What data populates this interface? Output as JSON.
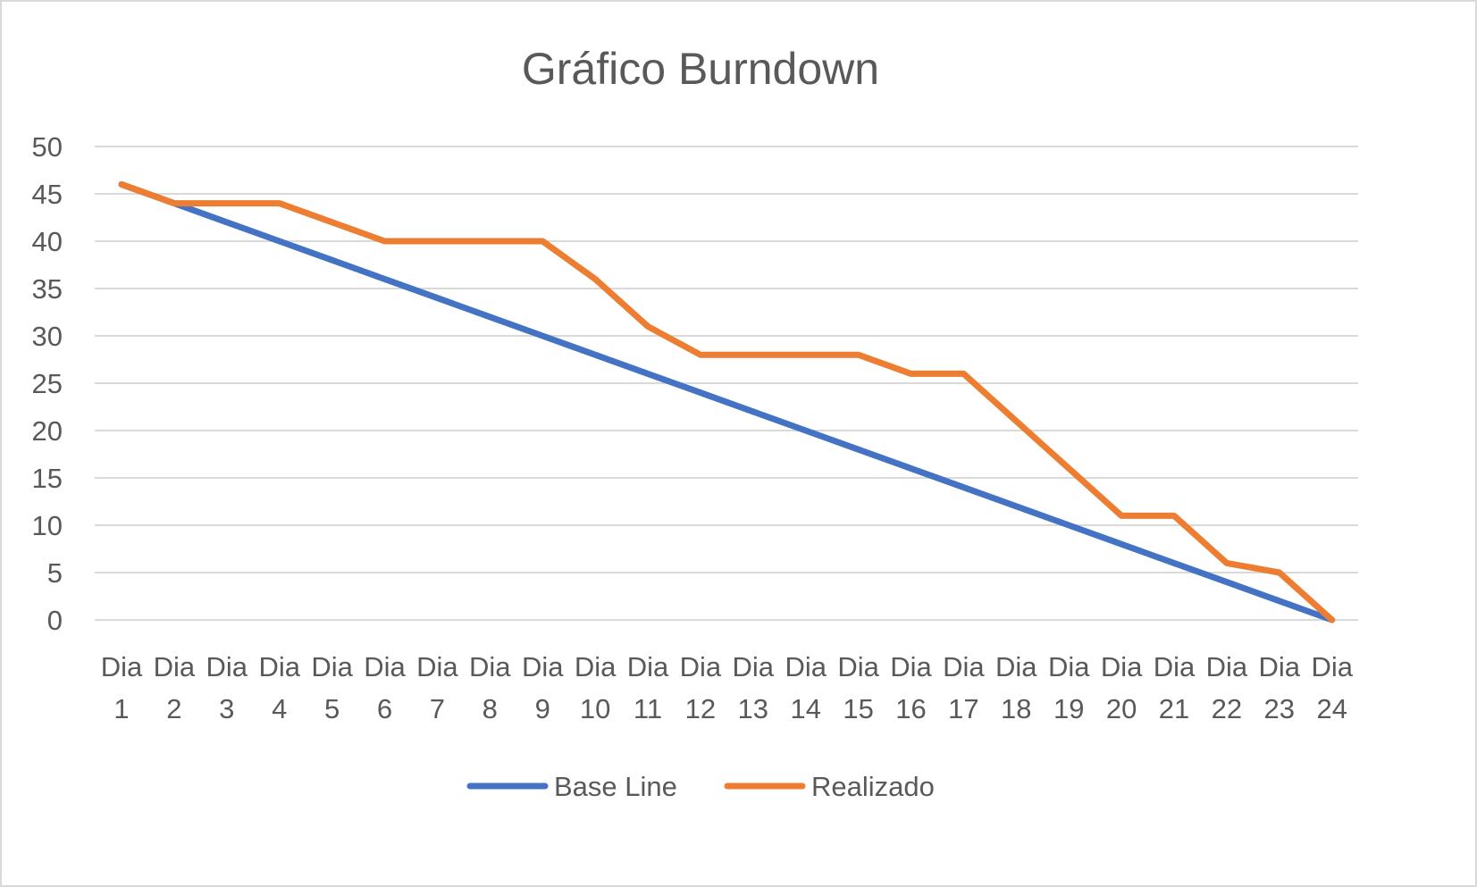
{
  "chart_data": {
    "type": "line",
    "title": "Gráfico Burndown",
    "xlabel": "",
    "ylabel": "",
    "ylim": [
      0,
      50
    ],
    "yticks": [
      "0",
      "5",
      "10",
      "15",
      "20",
      "25",
      "30",
      "35",
      "40",
      "45",
      "50"
    ],
    "grid": true,
    "legend_position": "bottom",
    "categories": [
      [
        "Dia",
        "1"
      ],
      [
        "Dia",
        "2"
      ],
      [
        "Dia",
        "3"
      ],
      [
        "Dia",
        "4"
      ],
      [
        "Dia",
        "5"
      ],
      [
        "Dia",
        "6"
      ],
      [
        "Dia",
        "7"
      ],
      [
        "Dia",
        "8"
      ],
      [
        "Dia",
        "9"
      ],
      [
        "Dia",
        "10"
      ],
      [
        "Dia",
        "11"
      ],
      [
        "Dia",
        "12"
      ],
      [
        "Dia",
        "13"
      ],
      [
        "Dia",
        "14"
      ],
      [
        "Dia",
        "15"
      ],
      [
        "Dia",
        "16"
      ],
      [
        "Dia",
        "17"
      ],
      [
        "Dia",
        "18"
      ],
      [
        "Dia",
        "19"
      ],
      [
        "Dia",
        "20"
      ],
      [
        "Dia",
        "21"
      ],
      [
        "Dia",
        "22"
      ],
      [
        "Dia",
        "23"
      ],
      [
        "Dia",
        "24"
      ]
    ],
    "series": [
      {
        "name": "Base Line",
        "color": "#4472c4",
        "values": [
          46,
          44,
          42,
          40,
          38,
          36,
          34,
          32,
          30,
          28,
          26,
          24,
          22,
          20,
          18,
          16,
          14,
          12,
          10,
          8,
          6,
          4,
          2,
          0
        ]
      },
      {
        "name": "Realizado",
        "color": "#ed7d31",
        "values": [
          46,
          44,
          44,
          44,
          42,
          40,
          40,
          40,
          40,
          36,
          31,
          28,
          28,
          28,
          28,
          26,
          26,
          21,
          16,
          11,
          11,
          6,
          5,
          0
        ]
      }
    ]
  }
}
